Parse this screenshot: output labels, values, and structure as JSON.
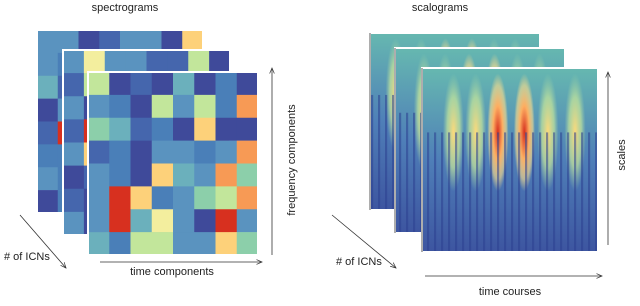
{
  "left_panel": {
    "title": "spectrograms",
    "y_axis_label": "frequency components",
    "x_axis_label": "time components",
    "depth_label": "# of ICNs"
  },
  "right_panel": {
    "title": "scalograms",
    "y_axis_label": "scales",
    "x_axis_label": "time courses",
    "depth_label": "# of ICNs"
  }
}
